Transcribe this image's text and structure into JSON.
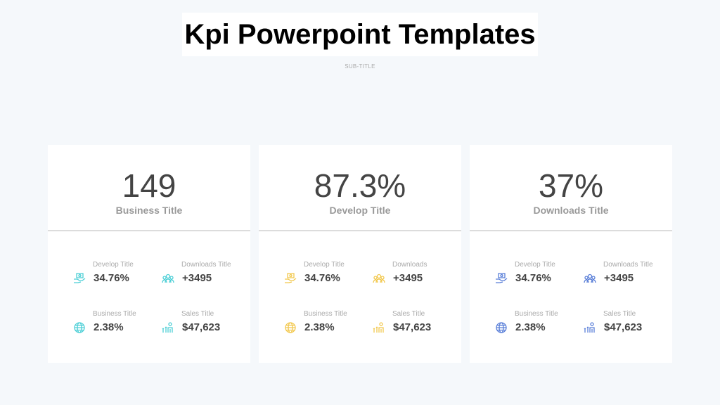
{
  "title": "Kpi Powerpoint Templates",
  "subtitle": "SUB-TITLE",
  "cards": [
    {
      "value": "149",
      "label": "Business Title",
      "color": "#4dcfd6",
      "items": [
        {
          "label": "Develop Title",
          "value": "34.76%",
          "icon": "hand-money-icon"
        },
        {
          "label": "Downloads  Title",
          "value": "+3495",
          "icon": "team-icon"
        },
        {
          "label": "Business Title",
          "value": "2.38%",
          "icon": "globe-icon"
        },
        {
          "label": "Sales Title",
          "value": "$47,623",
          "icon": "growth-person-icon"
        }
      ]
    },
    {
      "value": "87.3%",
      "label": "Develop Title",
      "color": "#f2c84e",
      "items": [
        {
          "label": "Develop Title",
          "value": "34.76%",
          "icon": "hand-money-icon"
        },
        {
          "label": "Downloads",
          "value": "+3495",
          "icon": "team-icon"
        },
        {
          "label": "Business Title",
          "value": "2.38%",
          "icon": "globe-icon"
        },
        {
          "label": "Sales Title",
          "value": "$47,623",
          "icon": "growth-person-icon"
        }
      ]
    },
    {
      "value": "37%",
      "label": "Downloads Title",
      "color": "#5a7fd8",
      "items": [
        {
          "label": "Develop Title",
          "value": "34.76%",
          "icon": "hand-money-icon"
        },
        {
          "label": "Downloads  Title",
          "value": "+3495",
          "icon": "team-icon"
        },
        {
          "label": "Business Title",
          "value": "2.38%",
          "icon": "globe-icon"
        },
        {
          "label": "Sales Title",
          "value": "$47,623",
          "icon": "growth-person-icon"
        }
      ]
    }
  ]
}
